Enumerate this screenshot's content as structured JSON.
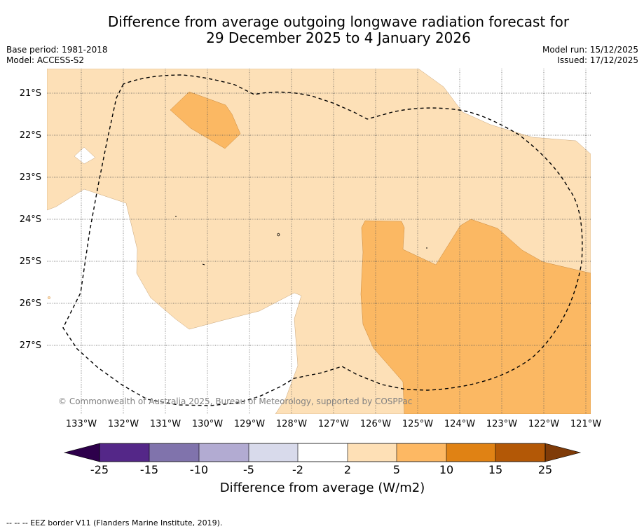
{
  "header": {
    "title_line1": "Difference from average outgoing longwave radiation forecast for",
    "title_line2": "29 December 2025 to 4 January 2026",
    "base_period": "Base period: 1981-2018",
    "model": "Model: ACCESS-S2",
    "model_run": "Model run: 15/12/2025",
    "issued": "Issued: 17/12/2025"
  },
  "map": {
    "latitude_labels": [
      "21°S",
      "22°S",
      "23°S",
      "24°S",
      "25°S",
      "26°S",
      "27°S"
    ],
    "longitude_labels": [
      "133°W",
      "132°W",
      "131°W",
      "130°W",
      "129°W",
      "128°W",
      "127°W",
      "126°W",
      "125°W",
      "124°W",
      "123°W",
      "122°W",
      "121°W"
    ],
    "copyright": "© Commonwealth of Australia 2025, Bureau of Meteorology, supported by COSPPac",
    "colors": {
      "band_2_5": "#fde0b7",
      "band_5_10": "#fbb863",
      "eez_border": "#000000"
    }
  },
  "colorbar": {
    "ticks": [
      "-25",
      "-15",
      "-10",
      "-5",
      "-2",
      "2",
      "5",
      "10",
      "15",
      "25"
    ],
    "label": "Difference from average (W/m2)",
    "colors": [
      "#2d004b",
      "#542788",
      "#8073ac",
      "#b2abd2",
      "#d8daeb",
      "#ffffff",
      "#fee0b6",
      "#fdb863",
      "#e08214",
      "#b35806",
      "#7f3b08"
    ]
  },
  "footer": {
    "legend_note": "--  --  -- EEZ border V11 (Flanders Marine Institute, 2019)."
  }
}
